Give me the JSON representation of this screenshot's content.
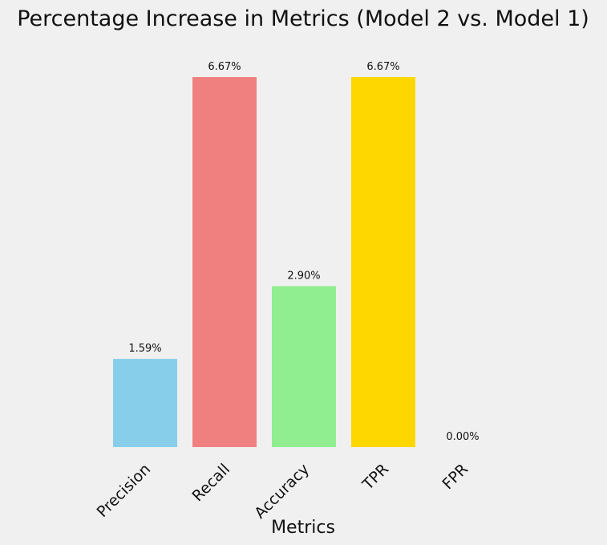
{
  "chart_data": {
    "type": "bar",
    "title": "Percentage Increase in Metrics (Model 2 vs. Model 1)",
    "xlabel": "Metrics",
    "ylabel": "",
    "categories": [
      "Precision",
      "Recall",
      "Accuracy",
      "TPR",
      "FPR"
    ],
    "values": [
      1.59,
      6.67,
      2.9,
      6.67,
      0.0
    ],
    "value_labels": [
      "1.59%",
      "6.67%",
      "2.90%",
      "6.67%",
      "0.00%"
    ],
    "colors": [
      "#87ceeb",
      "#f08080",
      "#90ee90",
      "#ffd700",
      "#dda0dd"
    ],
    "ylim": [
      0,
      6.67
    ],
    "grid": false,
    "legend": "none",
    "y_axis_visible": false
  }
}
